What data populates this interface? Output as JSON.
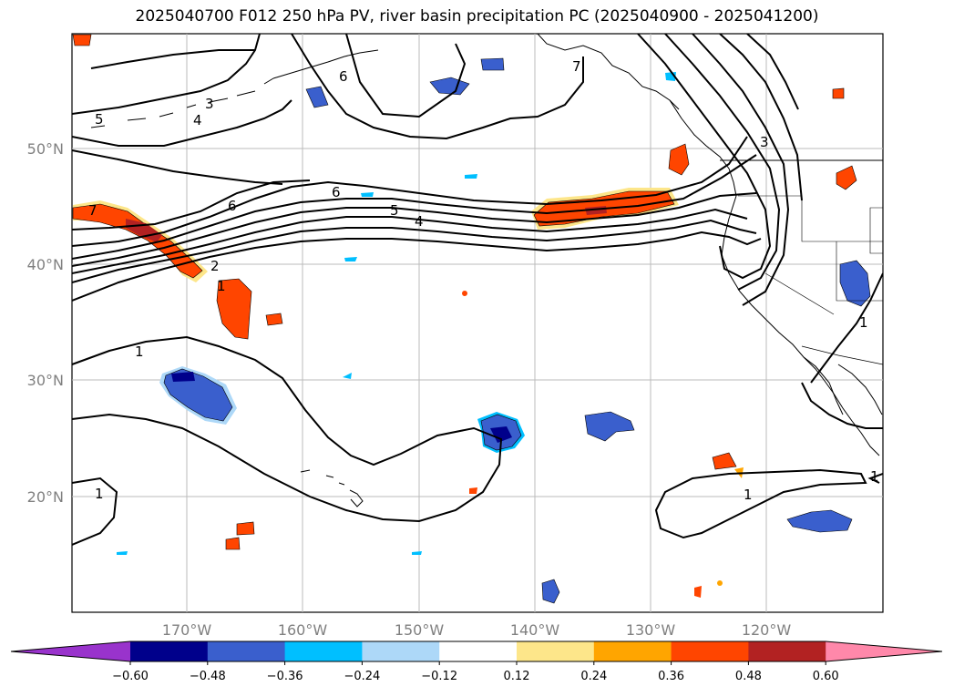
{
  "title": "2025040700 F012 250 hPa PV, river basin precipitation PC (2025040900 - 2025041200)",
  "latitude_labels": [
    "50°N",
    "40°N",
    "30°N",
    "20°N"
  ],
  "longitude_labels": [
    "170°W",
    "160°W",
    "150°W",
    "140°W",
    "130°W",
    "120°W"
  ],
  "contour_labels": [
    "5",
    "3",
    "4",
    "6",
    "6",
    "5",
    "4",
    "7",
    "6",
    "2",
    "1",
    "1",
    "1",
    "1",
    "1",
    "3",
    "7",
    "1"
  ],
  "colorbar": {
    "ticks": [
      "−0.60",
      "−0.48",
      "−0.36",
      "−0.24",
      "−0.12",
      "0.12",
      "0.24",
      "0.36",
      "0.48",
      "0.60"
    ],
    "colors": [
      "#9933cc",
      "#00008b",
      "#3a5fcd",
      "#00bfff",
      "#add8f8",
      "#ffffff",
      "#fde68a",
      "#ffa500",
      "#ff4500",
      "#b22222",
      "#ff88aa"
    ]
  },
  "map": {
    "ocean_color": "#ffffff",
    "grid_color": "#bbbbbb",
    "coast_color": "#000000"
  }
}
